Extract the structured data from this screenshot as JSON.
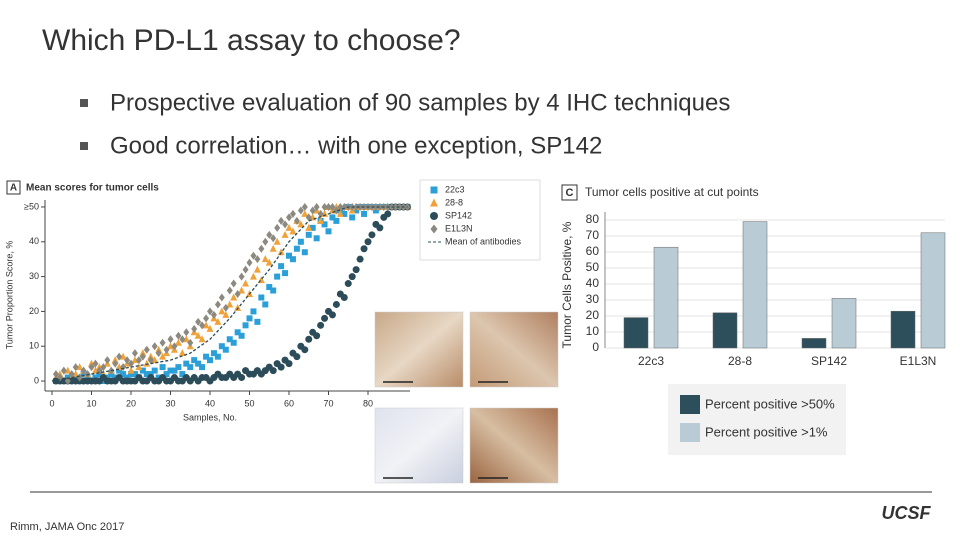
{
  "title": "Which PD-L1 assay to choose?",
  "bullets": [
    "Prospective evaluation of 90 samples by 4 IHC techniques",
    "Good correlation… with one exception, SP142"
  ],
  "figure_a": {
    "type": "scatter",
    "panel": "A",
    "title": "Mean scores for tumor cells",
    "x_label": "Samples, No.",
    "y_label": "Tumor Proportion Score, %",
    "x": [
      1,
      2,
      3,
      4,
      5,
      6,
      7,
      8,
      9,
      10,
      11,
      12,
      13,
      14,
      15,
      16,
      17,
      18,
      19,
      20,
      21,
      22,
      23,
      24,
      25,
      26,
      27,
      28,
      29,
      30,
      31,
      32,
      33,
      34,
      35,
      36,
      37,
      38,
      39,
      40,
      41,
      42,
      43,
      44,
      45,
      46,
      47,
      48,
      49,
      50,
      51,
      52,
      53,
      54,
      55,
      56,
      57,
      58,
      59,
      60,
      61,
      62,
      63,
      64,
      65,
      66,
      67,
      68,
      69,
      70,
      71,
      72,
      73,
      74,
      75,
      76,
      77,
      78,
      79,
      80,
      81,
      82,
      83,
      84,
      85,
      86,
      87,
      88,
      89,
      90
    ],
    "series": [
      {
        "name": "22c3",
        "color": "#2a9fd8",
        "marker": "square",
        "values": [
          0,
          0,
          0,
          1,
          0,
          1,
          0,
          2,
          1,
          0,
          1,
          2,
          0,
          1,
          2,
          1,
          3,
          2,
          1,
          2,
          2,
          1,
          3,
          2,
          2,
          3,
          1,
          4,
          2,
          3,
          3,
          4,
          2,
          5,
          4,
          6,
          5,
          4,
          7,
          6,
          8,
          7,
          10,
          9,
          12,
          11,
          14,
          13,
          16,
          18,
          20,
          17,
          24,
          22,
          27,
          26,
          30,
          33,
          31,
          36,
          35,
          38,
          40,
          37,
          42,
          44,
          41,
          46,
          45,
          43,
          47,
          46,
          49,
          48,
          50,
          47,
          49,
          50,
          48,
          50,
          50,
          49,
          50,
          50,
          50,
          50,
          50,
          50,
          50,
          50
        ]
      },
      {
        "name": "28-8",
        "color": "#f0a23a",
        "marker": "triangle",
        "values": [
          1,
          2,
          0,
          3,
          1,
          2,
          4,
          3,
          2,
          5,
          3,
          4,
          2,
          5,
          3,
          6,
          4,
          7,
          5,
          3,
          6,
          4,
          8,
          5,
          7,
          6,
          9,
          7,
          8,
          10,
          9,
          11,
          8,
          12,
          10,
          14,
          13,
          12,
          16,
          15,
          18,
          17,
          20,
          19,
          22,
          24,
          21,
          26,
          28,
          25,
          30,
          32,
          29,
          35,
          34,
          38,
          40,
          37,
          42,
          44,
          43,
          46,
          45,
          48,
          44,
          47,
          49,
          46,
          48,
          50,
          49,
          50,
          48,
          50,
          50,
          49,
          50,
          50,
          50,
          50,
          50,
          50,
          50,
          50,
          50,
          50,
          50,
          50,
          50,
          50
        ]
      },
      {
        "name": "SP142",
        "color": "#2b4c58",
        "marker": "circle",
        "values": [
          0,
          0,
          0,
          0,
          0,
          0,
          0,
          0,
          0,
          0,
          0,
          0,
          1,
          0,
          0,
          0,
          1,
          0,
          0,
          0,
          0,
          1,
          0,
          0,
          1,
          0,
          0,
          1,
          0,
          0,
          1,
          0,
          0,
          1,
          0,
          1,
          0,
          1,
          1,
          0,
          1,
          2,
          1,
          1,
          2,
          1,
          2,
          1,
          3,
          2,
          2,
          3,
          2,
          3,
          4,
          3,
          5,
          4,
          6,
          5,
          8,
          7,
          10,
          9,
          12,
          14,
          13,
          16,
          18,
          20,
          19,
          22,
          25,
          24,
          28,
          30,
          32,
          35,
          38,
          40,
          42,
          45,
          44,
          47,
          48,
          50,
          50,
          50,
          50,
          50
        ]
      },
      {
        "name": "E1L3N",
        "color": "#8c8a80",
        "marker": "diamond",
        "values": [
          2,
          1,
          3,
          0,
          2,
          4,
          1,
          3,
          2,
          4,
          5,
          3,
          4,
          6,
          3,
          5,
          7,
          4,
          6,
          5,
          8,
          6,
          7,
          9,
          6,
          10,
          8,
          11,
          9,
          12,
          10,
          13,
          12,
          14,
          11,
          15,
          17,
          16,
          18,
          20,
          19,
          22,
          24,
          21,
          26,
          28,
          25,
          30,
          32,
          34,
          36,
          35,
          38,
          40,
          42,
          41,
          44,
          46,
          45,
          47,
          48,
          46,
          49,
          50,
          47,
          49,
          50,
          48,
          50,
          50,
          50,
          49,
          50,
          50,
          50,
          50,
          50,
          50,
          50,
          50,
          50,
          50,
          50,
          50,
          50,
          50,
          50,
          50,
          50,
          50
        ]
      }
    ],
    "mean_line": {
      "name": "Mean of antibodies",
      "color": "#2b4c58",
      "x": [
        0,
        5,
        10,
        15,
        20,
        25,
        30,
        35,
        40,
        45,
        50,
        55,
        60,
        65,
        70,
        75,
        80,
        85,
        90
      ],
      "values": [
        0,
        1,
        2,
        3,
        4,
        5,
        6,
        8,
        12,
        18,
        25,
        32,
        40,
        46,
        48,
        50,
        50,
        50,
        50
      ]
    },
    "xlim": [
      -2,
      90
    ],
    "xticks": [
      0,
      10,
      20,
      30,
      40,
      50,
      60,
      70,
      80
    ],
    "ylim": [
      -2,
      52
    ],
    "yticks": [
      0,
      10,
      20,
      30,
      40,
      {
        "value": 50,
        "label": "≥50"
      }
    ]
  },
  "figure_c": {
    "type": "bar",
    "panel": "C",
    "title": "Tumor cells positive at cut points",
    "y_label": "Tumor Cells Positive, %",
    "categories": [
      "22c3",
      "28-8",
      "SP142",
      "E1L3N"
    ],
    "series": [
      {
        "name": "Percent positive >50%",
        "color": "#2c4f5b",
        "values": [
          19,
          22,
          6,
          23
        ]
      },
      {
        "name": "Percent positive >1%",
        "color": "#b9ccd6",
        "values": [
          63,
          79,
          31,
          72
        ]
      }
    ],
    "ylim": [
      0,
      85
    ],
    "yticks": [
      0,
      10,
      20,
      30,
      40,
      50,
      60,
      70,
      80
    ],
    "grid": true
  },
  "footer": {
    "citation": "Rimm, JAMA Onc 2017",
    "logo": "UCSF"
  }
}
